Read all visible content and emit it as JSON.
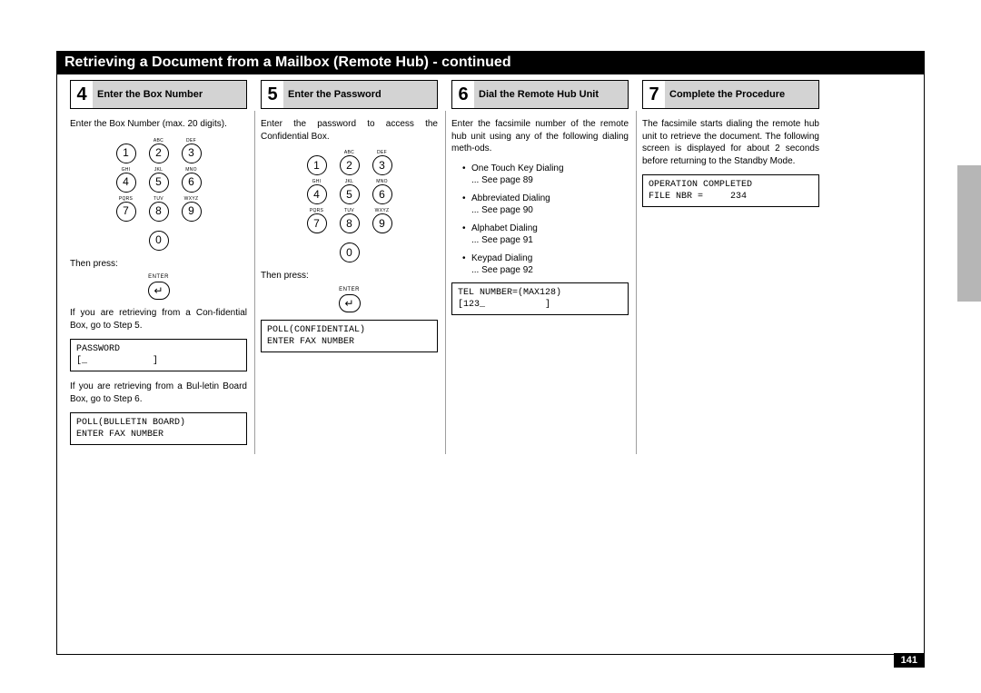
{
  "title": "Retrieving a Document from a Mailbox (Remote Hub) - continued",
  "page_number": "141",
  "keypad": {
    "sup": [
      "",
      "ABC",
      "DEF",
      "GHI",
      "JKL",
      "MNO",
      "PQRS",
      "TUV",
      "WXYZ",
      ""
    ],
    "keys": [
      "1",
      "2",
      "3",
      "4",
      "5",
      "6",
      "7",
      "8",
      "9",
      "0"
    ]
  },
  "enter_label": "ENTER",
  "enter_glyph": "↵",
  "then_press": "Then press:",
  "steps": {
    "s4": {
      "num": "4",
      "title": "Enter the Box Number",
      "intro": "Enter the Box Number (max. 20 digits).",
      "after1": "If you are retrieving from a  Con-fidential Box, go to Step 5.",
      "lcd1": "PASSWORD\n[_            ]",
      "after2": "If you are retrieving from a Bul-letin Board Box, go to Step 6.",
      "lcd2": "POLL(BULLETIN BOARD)\nENTER FAX NUMBER"
    },
    "s5": {
      "num": "5",
      "title": "Enter the Password",
      "intro": "Enter the password to access the Confidential Box.",
      "lcd": "POLL(CONFIDENTIAL)\nENTER FAX NUMBER"
    },
    "s6": {
      "num": "6",
      "title": "Dial the Remote Hub Unit",
      "intro": "Enter the facsimile number of the remote hub unit using any of the following dialing meth-ods.",
      "list": [
        {
          "a": "One Touch Key Dialing",
          "b": "... See page 89"
        },
        {
          "a": "Abbreviated Dialing",
          "b": "... See page 90"
        },
        {
          "a": "Alphabet Dialing",
          "b": "... See page 91"
        },
        {
          "a": "Keypad Dialing",
          "b": "... See page 92"
        }
      ],
      "lcd": "TEL NUMBER=(MAX128)\n[123_           ]"
    },
    "s7": {
      "num": "7",
      "title": "Complete the Procedure",
      "intro": "The facsimile starts dialing the remote hub unit to retrieve the document. The following screen is displayed for about 2 seconds before returning to the Standby Mode.",
      "lcd": "OPERATION COMPLETED\nFILE NBR =     234"
    }
  }
}
